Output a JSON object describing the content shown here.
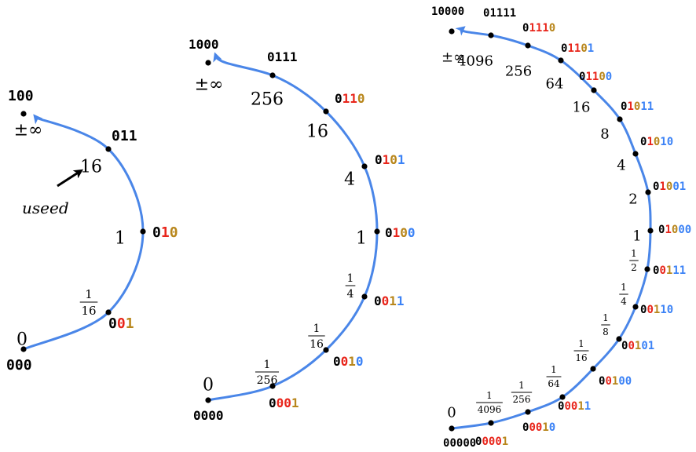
{
  "colors": {
    "arc": "#4a86e8",
    "dot": "#000000",
    "sign": "#000000",
    "regime": "#e8251b",
    "regime_term": "#b8861b",
    "exponent": "#3b82f6",
    "text": "#000000"
  },
  "rings": [
    {
      "id": "ring-3bit",
      "points": [
        {
          "value": "0",
          "bits": "000"
        },
        {
          "value": "1/16",
          "bits": "001"
        },
        {
          "value": "1",
          "bits": "010"
        },
        {
          "value": "16",
          "bits": "011"
        },
        {
          "value": "±∞",
          "bits": "100"
        }
      ],
      "annotation": {
        "text": "useed",
        "target": "16"
      }
    },
    {
      "id": "ring-4bit",
      "points": [
        {
          "value": "0",
          "bits": "0000"
        },
        {
          "value": "1/256",
          "bits": "0001"
        },
        {
          "value": "1/16",
          "bits": "0010"
        },
        {
          "value": "1/4",
          "bits": "0011"
        },
        {
          "value": "1",
          "bits": "0100"
        },
        {
          "value": "4",
          "bits": "0101"
        },
        {
          "value": "16",
          "bits": "0110"
        },
        {
          "value": "256",
          "bits": "0111"
        },
        {
          "value": "±∞",
          "bits": "1000"
        }
      ]
    },
    {
      "id": "ring-5bit",
      "points": [
        {
          "value": "0",
          "bits": "00000"
        },
        {
          "value": "1/4096",
          "bits": "00001"
        },
        {
          "value": "1/256",
          "bits": "00010"
        },
        {
          "value": "1/64",
          "bits": "00011"
        },
        {
          "value": "1/16",
          "bits": "00100"
        },
        {
          "value": "1/8",
          "bits": "00101"
        },
        {
          "value": "1/4",
          "bits": "00110"
        },
        {
          "value": "1/2",
          "bits": "00111"
        },
        {
          "value": "1",
          "bits": "01000"
        },
        {
          "value": "2",
          "bits": "01001"
        },
        {
          "value": "4",
          "bits": "01010"
        },
        {
          "value": "8",
          "bits": "01011"
        },
        {
          "value": "16",
          "bits": "01100"
        },
        {
          "value": "64",
          "bits": "01101"
        },
        {
          "value": "256",
          "bits": "01110"
        },
        {
          "value": "4096",
          "bits": "01111"
        },
        {
          "value": "±∞",
          "bits": "10000"
        }
      ]
    }
  ]
}
